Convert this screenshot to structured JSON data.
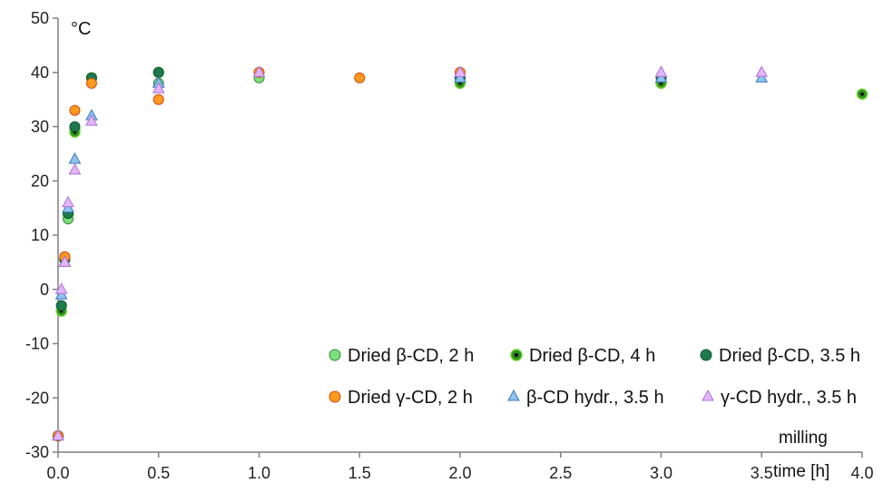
{
  "chart_data": {
    "type": "scatter",
    "unit_label": "°C",
    "x_axis_label_line1": "milling",
    "x_axis_label_line2": "time [h]",
    "xlim": [
      0,
      4.0
    ],
    "ylim": [
      -30,
      50
    ],
    "x_ticks": [
      "0.0",
      "0.5",
      "1.0",
      "1.5",
      "2.0",
      "2.5",
      "3.0",
      "3.5",
      "4.0"
    ],
    "y_ticks": [
      "50",
      "40",
      "30",
      "20",
      "10",
      "0",
      "-10",
      "-20",
      "-30"
    ],
    "grid": false,
    "legend_position": "bottom-right",
    "series": [
      {
        "name": "Dried β-CD, 2 h",
        "marker": "circle",
        "fill": "#7CE07C",
        "stroke": "#3a8a3a",
        "points": [
          [
            0.0,
            -27
          ],
          [
            0.0167,
            -3
          ],
          [
            0.0333,
            6
          ],
          [
            0.05,
            13
          ],
          [
            0.0833,
            29.5
          ],
          [
            0.1667,
            39
          ],
          [
            0.5,
            38
          ],
          [
            1.0,
            39
          ],
          [
            2.0,
            38
          ]
        ]
      },
      {
        "name": "Dried β-CD, 4 h",
        "marker": "circle-dot",
        "fill": "#2f8f1f",
        "stroke": "#6fd32f",
        "points": [
          [
            0.0,
            -27
          ],
          [
            0.0167,
            -4
          ],
          [
            0.0333,
            5.5
          ],
          [
            0.05,
            14
          ],
          [
            0.0833,
            29
          ],
          [
            0.1667,
            39
          ],
          [
            0.5,
            40
          ],
          [
            2.0,
            38
          ],
          [
            3.0,
            38
          ],
          [
            4.0,
            36
          ]
        ]
      },
      {
        "name": "Dried β-CD, 3.5 h",
        "marker": "circle",
        "fill": "#1e7a4e",
        "stroke": "#0f5a34",
        "points": [
          [
            0.0,
            -27
          ],
          [
            0.0167,
            -3
          ],
          [
            0.0333,
            5.5
          ],
          [
            0.05,
            14
          ],
          [
            0.0833,
            30
          ],
          [
            0.1667,
            39
          ],
          [
            0.5,
            40
          ],
          [
            2.0,
            39
          ],
          [
            3.0,
            39
          ]
        ]
      },
      {
        "name": "Dried γ-CD, 2 h",
        "marker": "circle",
        "fill": "#FF9A1F",
        "stroke": "#d04a10",
        "points": [
          [
            0.0,
            -27
          ],
          [
            0.0333,
            6
          ],
          [
            0.0833,
            33
          ],
          [
            0.1667,
            38
          ],
          [
            0.5,
            35
          ],
          [
            1.0,
            40
          ],
          [
            1.5,
            39
          ],
          [
            2.0,
            40
          ]
        ]
      },
      {
        "name": "β-CD hydr., 3.5 h",
        "marker": "triangle",
        "fill": "#8ec3ef",
        "stroke": "#3b78b8",
        "points": [
          [
            0.0,
            -27
          ],
          [
            0.0167,
            -1
          ],
          [
            0.0333,
            5
          ],
          [
            0.05,
            15
          ],
          [
            0.0833,
            24
          ],
          [
            0.1667,
            32
          ],
          [
            0.5,
            38
          ],
          [
            2.0,
            39
          ],
          [
            3.0,
            39
          ],
          [
            3.5,
            39
          ]
        ]
      },
      {
        "name": "γ-CD hydr., 3.5 h",
        "marker": "triangle",
        "fill": "#e2b6f7",
        "stroke": "#b070d8",
        "points": [
          [
            0.0,
            -27
          ],
          [
            0.0167,
            0
          ],
          [
            0.0333,
            5
          ],
          [
            0.05,
            16
          ],
          [
            0.0833,
            22
          ],
          [
            0.1667,
            31
          ],
          [
            0.5,
            37
          ],
          [
            1.0,
            40
          ],
          [
            2.0,
            40
          ],
          [
            3.0,
            40
          ],
          [
            3.5,
            40
          ]
        ]
      }
    ]
  }
}
